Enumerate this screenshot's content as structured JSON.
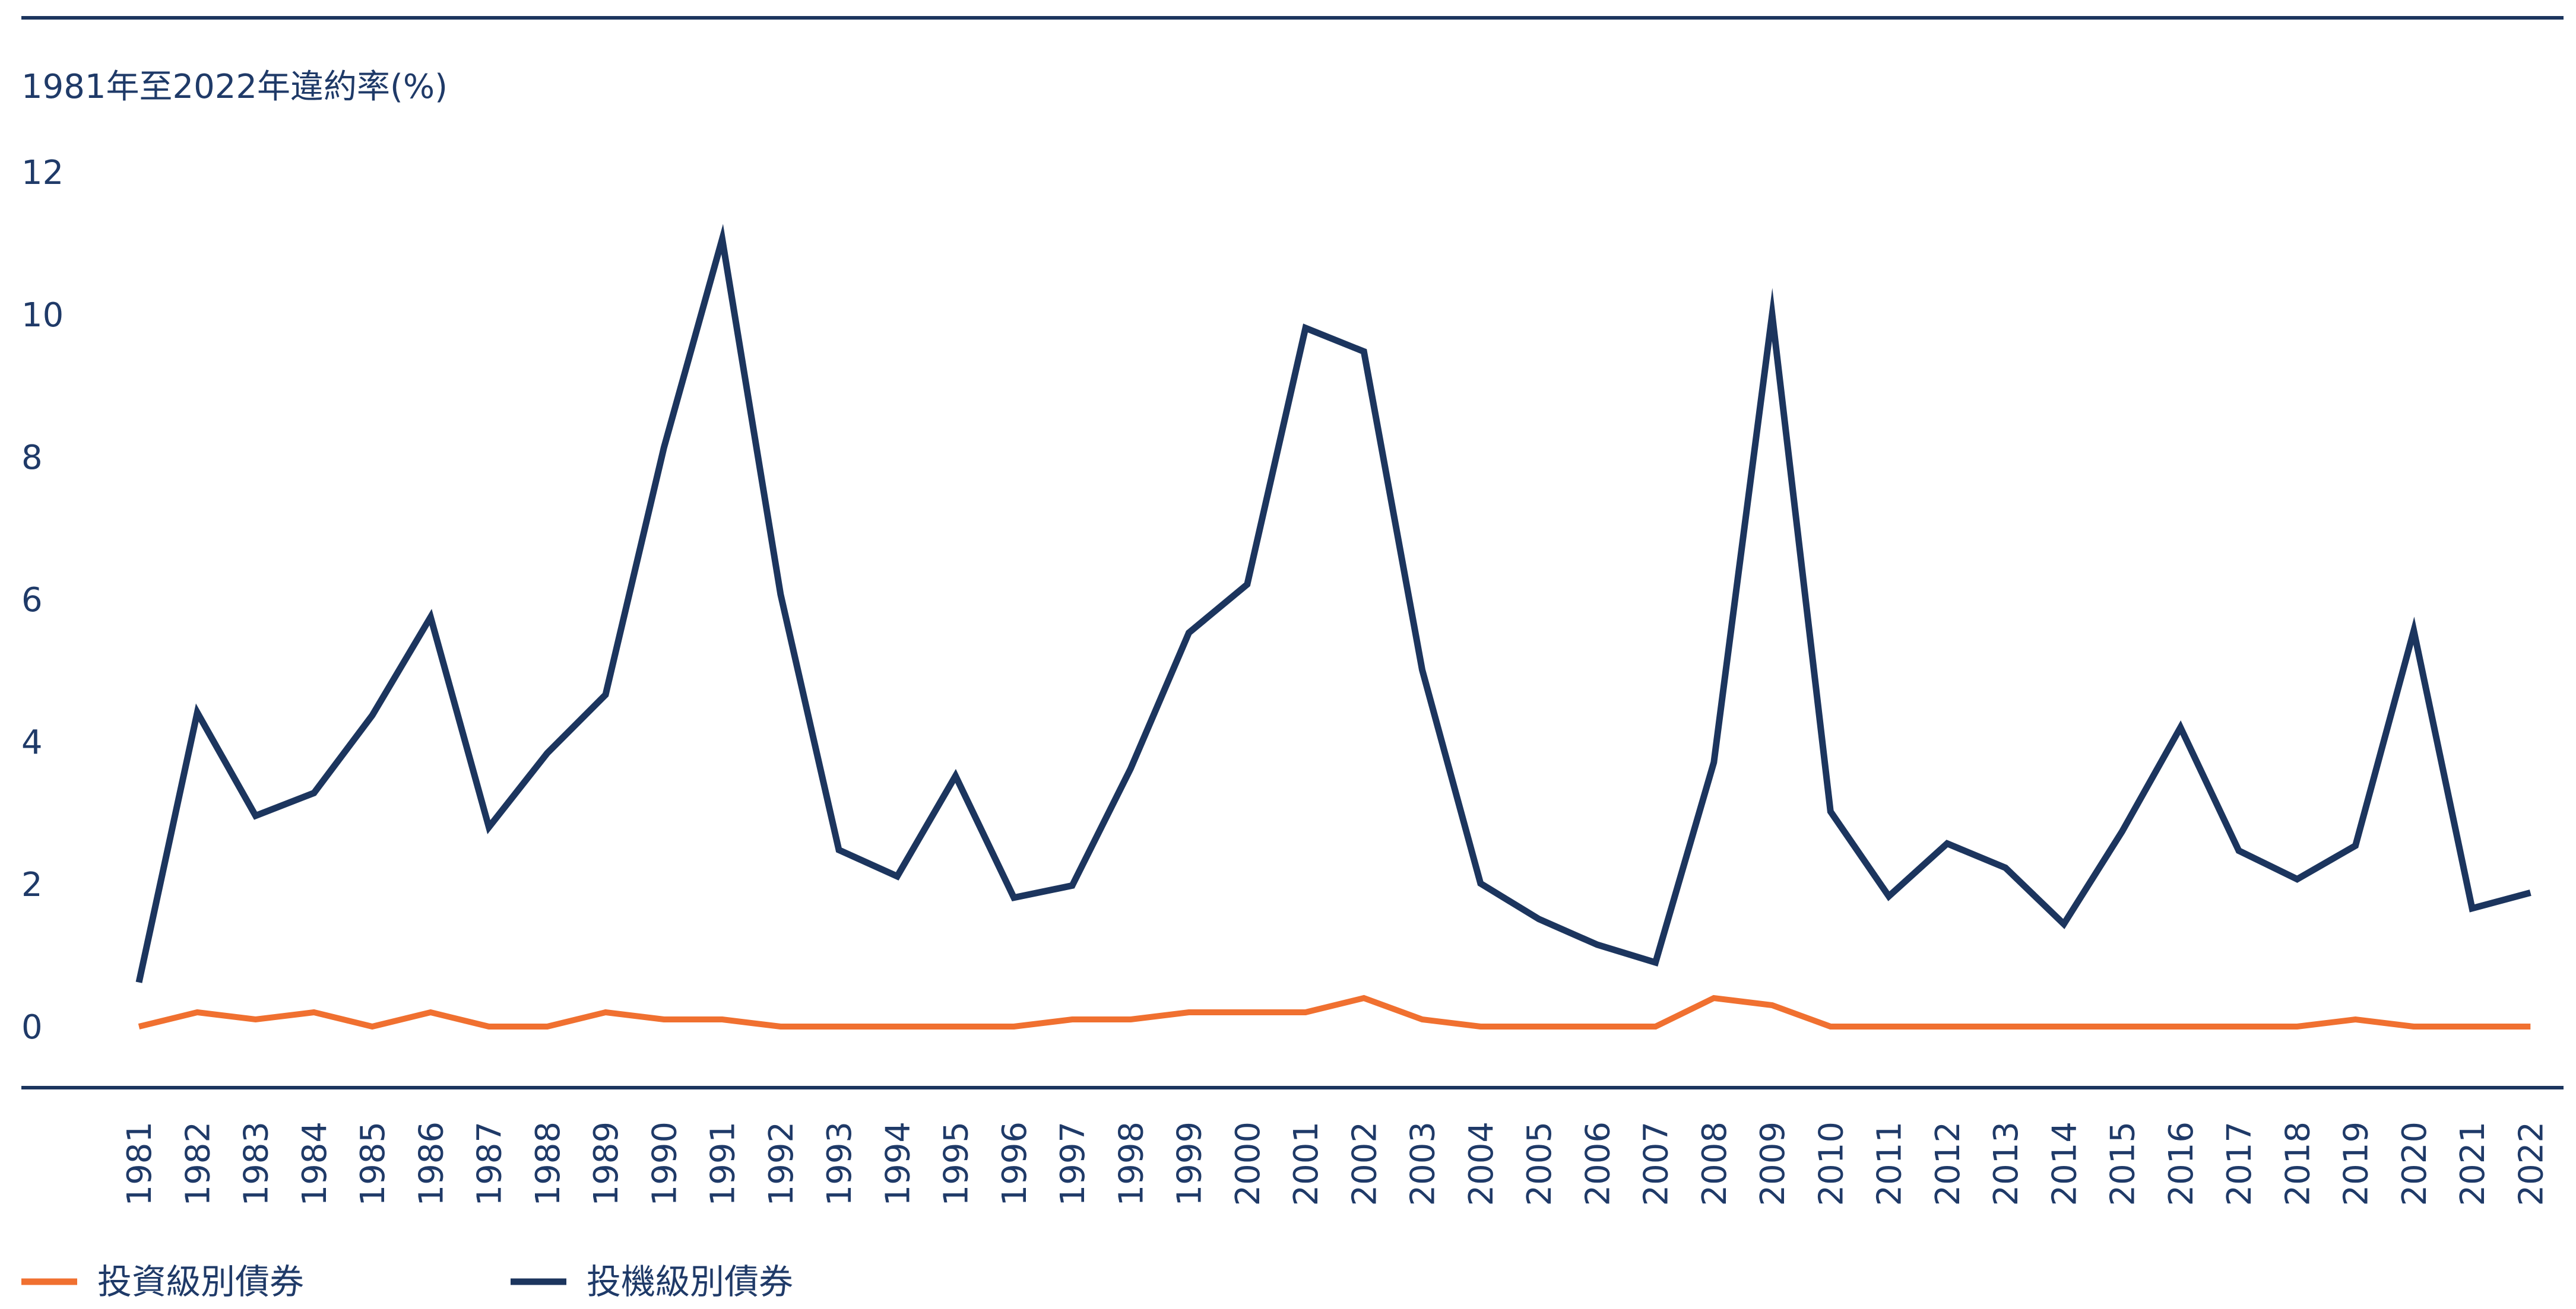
{
  "chart_data": {
    "type": "line",
    "title": "1981年至2022年違約率(%)",
    "xlabel": "",
    "ylabel": "",
    "ylim": [
      0,
      12
    ],
    "yticks": [
      "0",
      "2",
      "4",
      "6",
      "8",
      "10",
      "12"
    ],
    "categories": [
      "1981",
      "1982",
      "1983",
      "1984",
      "1985",
      "1986",
      "1987",
      "1988",
      "1989",
      "1990",
      "1991",
      "1992",
      "1993",
      "1994",
      "1995",
      "1996",
      "1997",
      "1998",
      "1999",
      "2000",
      "2001",
      "2002",
      "2003",
      "2004",
      "2005",
      "2006",
      "2007",
      "2008",
      "2009",
      "2010",
      "2011",
      "2012",
      "2013",
      "2014",
      "2015",
      "2016",
      "2017",
      "2018",
      "2019",
      "2020",
      "2021",
      "2022"
    ],
    "series": [
      {
        "name": "投資級別債券",
        "color": "#f07030",
        "values": [
          0.0,
          0.2,
          0.1,
          0.2,
          0.0,
          0.2,
          0.0,
          0.0,
          0.2,
          0.1,
          0.1,
          0.0,
          0.0,
          0.0,
          0.0,
          0.0,
          0.1,
          0.1,
          0.2,
          0.2,
          0.2,
          0.4,
          0.1,
          0.0,
          0.0,
          0.0,
          0.0,
          0.4,
          0.3,
          0.0,
          0.0,
          0.0,
          0.0,
          0.0,
          0.0,
          0.0,
          0.0,
          0.0,
          0.1,
          0.0,
          0.0,
          0.0
        ]
      },
      {
        "name": "投機級別債券",
        "color": "#1c355e",
        "values": [
          0.62,
          4.41,
          2.96,
          3.28,
          4.37,
          5.75,
          2.8,
          3.84,
          4.66,
          8.13,
          11.06,
          6.07,
          2.48,
          2.11,
          3.52,
          1.81,
          1.98,
          3.62,
          5.53,
          6.21,
          9.81,
          9.48,
          5.01,
          2.01,
          1.51,
          1.15,
          0.9,
          3.71,
          10.0,
          3.02,
          1.83,
          2.57,
          2.23,
          1.44,
          2.74,
          4.2,
          2.47,
          2.07,
          2.54,
          5.56,
          1.66,
          1.88
        ]
      }
    ],
    "legend": "bottom-left"
  }
}
